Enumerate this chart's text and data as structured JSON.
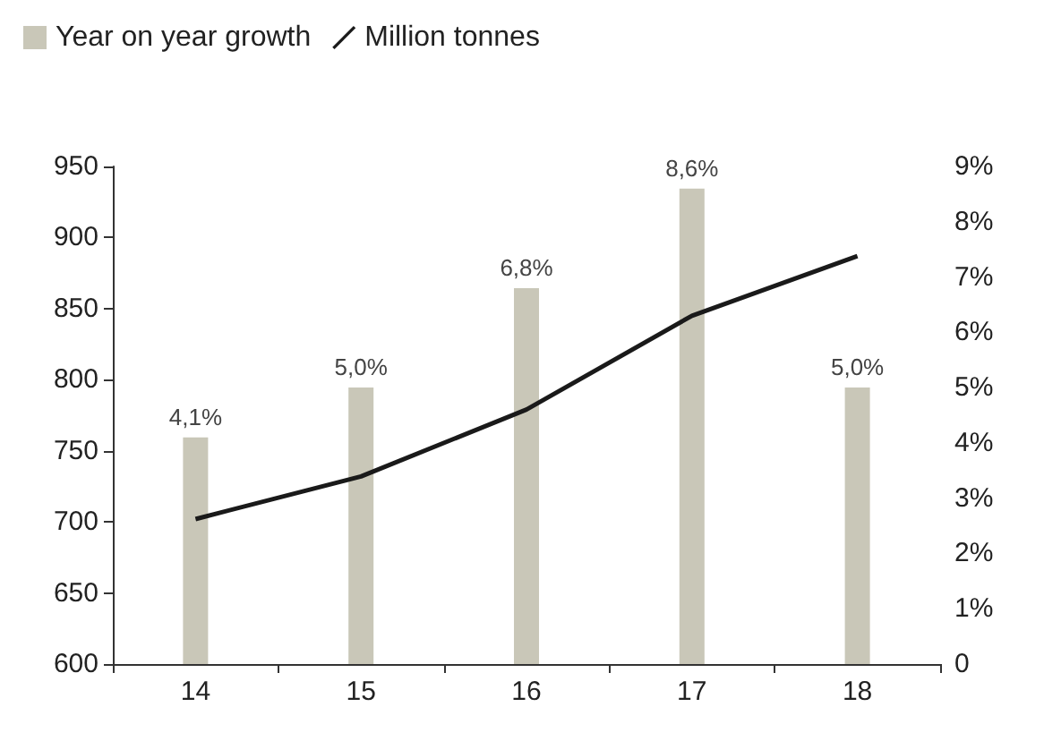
{
  "chart_data": {
    "type": "bar",
    "categories": [
      "14",
      "15",
      "16",
      "17",
      "18"
    ],
    "series": [
      {
        "name": "Year on year growth",
        "axis": "y2",
        "color": "#c9c7b8",
        "values": [
          4.1,
          5.0,
          6.8,
          8.6,
          5.0
        ],
        "value_labels": [
          "4,1%",
          "5,0%",
          "6,8%",
          "8,6%",
          "5,0%"
        ]
      },
      {
        "name": "Million tonnes",
        "type": "line",
        "color": "#1a1a1a",
        "values": [
          702,
          732,
          779,
          845,
          887
        ]
      }
    ],
    "ylim": [
      600,
      950
    ],
    "yticks": [
      600,
      650,
      700,
      750,
      800,
      850,
      900,
      950
    ],
    "y2lim": [
      0,
      9
    ],
    "y2ticks": [
      0,
      {
        "value": 1,
        "label": "1%"
      },
      {
        "value": 2,
        "label": "2%"
      },
      {
        "value": 3,
        "label": "3%"
      },
      {
        "value": 4,
        "label": "4%"
      },
      {
        "value": 5,
        "label": "5%"
      },
      {
        "value": 6,
        "label": "6%"
      },
      {
        "value": 7,
        "label": "7%"
      },
      {
        "value": 8,
        "label": "8%"
      },
      {
        "value": 9,
        "label": "9%"
      }
    ],
    "legend": "top left",
    "grid": false,
    "marker": "none",
    "line_style": "solid"
  }
}
